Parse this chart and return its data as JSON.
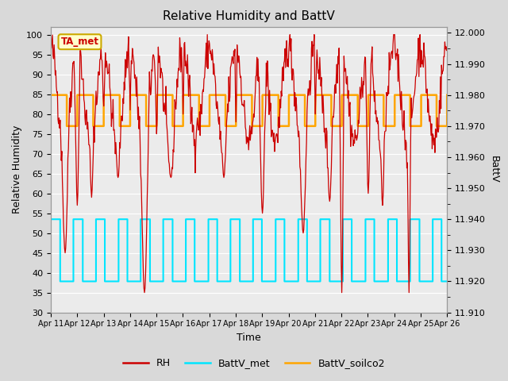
{
  "title": "Relative Humidity and BattV",
  "xlabel": "Time",
  "ylabel_left": "Relative Humidity",
  "ylabel_right": "BattV",
  "ylim_left": [
    30,
    102
  ],
  "ylim_right": [
    11.91,
    12.002
  ],
  "yticks_left": [
    30,
    35,
    40,
    45,
    50,
    55,
    60,
    65,
    70,
    75,
    80,
    85,
    90,
    95,
    100
  ],
  "yticks_right": [
    11.91,
    11.92,
    11.93,
    11.94,
    11.95,
    11.96,
    11.97,
    11.98,
    11.99,
    12.0
  ],
  "bg_color": "#d9d9d9",
  "plot_bg_color": "#ebebeb",
  "rh_color": "#cc0000",
  "battv_met_color": "#00e5ff",
  "battv_soilco2_color": "#ffa500",
  "annotation_text": "TA_met",
  "annotation_bg": "#ffffcc",
  "annotation_border": "#ccaa00",
  "grid_color": "#ffffff",
  "tick_labels_x": [
    "Apr 11",
    "Apr 12",
    "Apr 13",
    "Apr 14",
    "Apr 15",
    "Apr 16",
    "Apr 17",
    "Apr 18",
    "Apr 19",
    "Apr 20",
    "Apr 21",
    "Apr 22",
    "Apr 23",
    "Apr 24",
    "Apr 25",
    "Apr 26"
  ],
  "battv_met_high": 11.94,
  "battv_met_low": 11.92,
  "battv_soilco2_high": 11.98,
  "battv_soilco2_low": 11.97
}
